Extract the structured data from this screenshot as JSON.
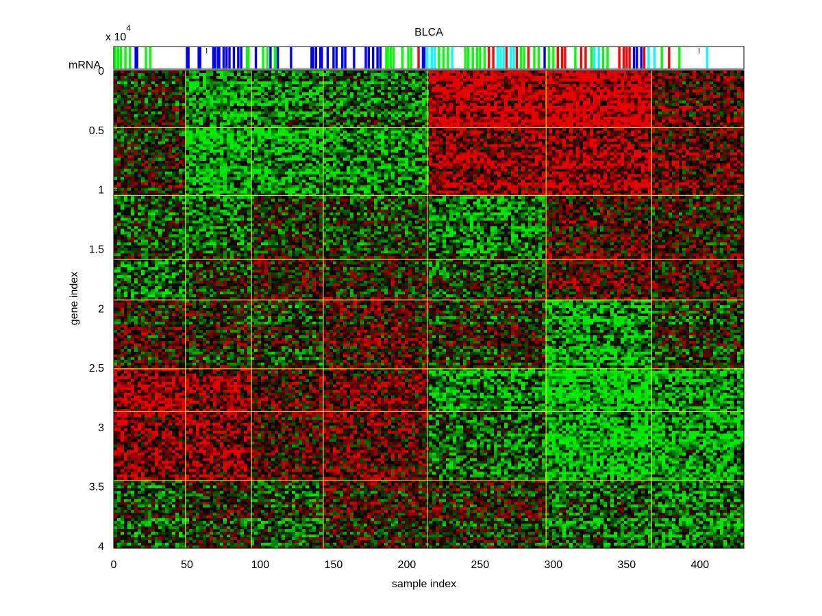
{
  "chart_data": {
    "type": "heatmap",
    "title": "BLCA",
    "xlabel": "sample index",
    "ylabel": "gene index",
    "y_exponent_label": "x 10",
    "y_exponent_power": "4",
    "annotation_row_label": "mRNA",
    "xlim": [
      0,
      430
    ],
    "ylim": [
      0,
      40200
    ],
    "y_reversed": true,
    "x_ticks": [
      0,
      50,
      100,
      150,
      200,
      250,
      300,
      350,
      400
    ],
    "x_tick_labels": [
      "0",
      "50",
      "100",
      "150",
      "200",
      "250",
      "300",
      "350",
      "400"
    ],
    "y_ticks": [
      0,
      5000,
      10000,
      15000,
      20000,
      25000,
      30000,
      35000,
      40000
    ],
    "y_tick_labels": [
      "0",
      "0.5",
      "1",
      "1.5",
      "2",
      "2.5",
      "3",
      "3.5",
      "4"
    ],
    "sample_cluster_boundaries": [
      49,
      94,
      143,
      214,
      295,
      367
    ],
    "gene_cluster_boundaries": [
      4800,
      10500,
      15900,
      19300,
      25100,
      28700,
      34500
    ],
    "heatmap_colors": {
      "low": "#00ee00",
      "mid": "#000000",
      "high": "#ee0000"
    },
    "boundary_line_color": "#ffff00",
    "block_pattern": {
      "gene_clusters": 8,
      "sample_clusters": 7,
      "mean_levels": [
        [
          -0.1,
          -0.6,
          -0.5,
          -0.4,
          0.7,
          0.8,
          0.2
        ],
        [
          0.0,
          -0.7,
          -0.6,
          -0.5,
          0.5,
          0.6,
          0.3
        ],
        [
          -0.2,
          -0.3,
          0.0,
          -0.1,
          -0.4,
          0.2,
          0.1
        ],
        [
          -0.3,
          0.0,
          0.2,
          0.1,
          -0.1,
          0.3,
          0.2
        ],
        [
          0.1,
          0.0,
          -0.1,
          0.2,
          0.0,
          -0.6,
          -0.1
        ],
        [
          0.6,
          0.5,
          0.2,
          0.3,
          -0.5,
          -0.8,
          -0.5
        ],
        [
          0.5,
          0.5,
          0.2,
          0.3,
          -0.3,
          -0.7,
          -0.6
        ],
        [
          -0.2,
          0.0,
          -0.2,
          0.1,
          0.0,
          -0.3,
          -0.4
        ]
      ]
    },
    "annotation_colors": [
      "#00ff00",
      "#0000ff",
      "#00ffff",
      "#ff0000",
      "#000000"
    ],
    "annotation_bars": [
      {
        "x": 1,
        "c": 0
      },
      {
        "x": 3,
        "c": 0
      },
      {
        "x": 5,
        "c": 0
      },
      {
        "x": 8,
        "c": 0
      },
      {
        "x": 11,
        "c": 0
      },
      {
        "x": 15,
        "c": 1
      },
      {
        "x": 16,
        "c": 1
      },
      {
        "x": 22,
        "c": 0
      },
      {
        "x": 25,
        "c": 0
      },
      {
        "x": 50,
        "c": 1
      },
      {
        "x": 51,
        "c": 1
      },
      {
        "x": 58,
        "c": 1
      },
      {
        "x": 59,
        "c": 1
      },
      {
        "x": 64,
        "c": 4
      },
      {
        "x": 68,
        "c": 1
      },
      {
        "x": 69,
        "c": 1
      },
      {
        "x": 71,
        "c": 1
      },
      {
        "x": 72,
        "c": 1
      },
      {
        "x": 75,
        "c": 1
      },
      {
        "x": 77,
        "c": 1
      },
      {
        "x": 79,
        "c": 1
      },
      {
        "x": 82,
        "c": 1
      },
      {
        "x": 85,
        "c": 1
      },
      {
        "x": 87,
        "c": 1
      },
      {
        "x": 91,
        "c": 0
      },
      {
        "x": 92,
        "c": 0
      },
      {
        "x": 97,
        "c": 1
      },
      {
        "x": 102,
        "c": 0
      },
      {
        "x": 105,
        "c": 0
      },
      {
        "x": 107,
        "c": 1
      },
      {
        "x": 110,
        "c": 0
      },
      {
        "x": 111,
        "c": 0
      },
      {
        "x": 112,
        "c": 1
      },
      {
        "x": 121,
        "c": 1
      },
      {
        "x": 135,
        "c": 1
      },
      {
        "x": 136,
        "c": 1
      },
      {
        "x": 138,
        "c": 1
      },
      {
        "x": 141,
        "c": 1
      },
      {
        "x": 142,
        "c": 1
      },
      {
        "x": 146,
        "c": 1
      },
      {
        "x": 150,
        "c": 1
      },
      {
        "x": 152,
        "c": 1
      },
      {
        "x": 156,
        "c": 1
      },
      {
        "x": 158,
        "c": 1
      },
      {
        "x": 164,
        "c": 1
      },
      {
        "x": 172,
        "c": 1
      },
      {
        "x": 174,
        "c": 1
      },
      {
        "x": 177,
        "c": 1
      },
      {
        "x": 180,
        "c": 1
      },
      {
        "x": 182,
        "c": 1
      },
      {
        "x": 186,
        "c": 0
      },
      {
        "x": 187,
        "c": 0
      },
      {
        "x": 189,
        "c": 0
      },
      {
        "x": 191,
        "c": 0
      },
      {
        "x": 197,
        "c": 0
      },
      {
        "x": 201,
        "c": 0
      },
      {
        "x": 203,
        "c": 0
      },
      {
        "x": 208,
        "c": 3
      },
      {
        "x": 211,
        "c": 1
      },
      {
        "x": 212,
        "c": 1
      },
      {
        "x": 214,
        "c": 2
      },
      {
        "x": 217,
        "c": 2
      },
      {
        "x": 219,
        "c": 2
      },
      {
        "x": 222,
        "c": 0
      },
      {
        "x": 225,
        "c": 0
      },
      {
        "x": 228,
        "c": 0
      },
      {
        "x": 231,
        "c": 2
      },
      {
        "x": 240,
        "c": 0
      },
      {
        "x": 242,
        "c": 0
      },
      {
        "x": 245,
        "c": 0
      },
      {
        "x": 248,
        "c": 0
      },
      {
        "x": 250,
        "c": 0
      },
      {
        "x": 253,
        "c": 0
      },
      {
        "x": 256,
        "c": 3
      },
      {
        "x": 259,
        "c": 3
      },
      {
        "x": 262,
        "c": 2
      },
      {
        "x": 264,
        "c": 2
      },
      {
        "x": 266,
        "c": 2
      },
      {
        "x": 268,
        "c": 3
      },
      {
        "x": 271,
        "c": 2
      },
      {
        "x": 273,
        "c": 2
      },
      {
        "x": 275,
        "c": 3
      },
      {
        "x": 278,
        "c": 0
      },
      {
        "x": 280,
        "c": 0
      },
      {
        "x": 283,
        "c": 3
      },
      {
        "x": 287,
        "c": 0
      },
      {
        "x": 290,
        "c": 0
      },
      {
        "x": 294,
        "c": 1
      },
      {
        "x": 297,
        "c": 0
      },
      {
        "x": 300,
        "c": 0
      },
      {
        "x": 303,
        "c": 3
      },
      {
        "x": 306,
        "c": 3
      },
      {
        "x": 308,
        "c": 3
      },
      {
        "x": 315,
        "c": 0
      },
      {
        "x": 319,
        "c": 3
      },
      {
        "x": 322,
        "c": 3
      },
      {
        "x": 326,
        "c": 0
      },
      {
        "x": 328,
        "c": 2
      },
      {
        "x": 331,
        "c": 2
      },
      {
        "x": 334,
        "c": 0
      },
      {
        "x": 337,
        "c": 0
      },
      {
        "x": 345,
        "c": 3
      },
      {
        "x": 348,
        "c": 3
      },
      {
        "x": 350,
        "c": 3
      },
      {
        "x": 352,
        "c": 3
      },
      {
        "x": 355,
        "c": 1
      },
      {
        "x": 357,
        "c": 1
      },
      {
        "x": 360,
        "c": 1
      },
      {
        "x": 362,
        "c": 3
      },
      {
        "x": 365,
        "c": 2
      },
      {
        "x": 369,
        "c": 2
      },
      {
        "x": 374,
        "c": 0
      },
      {
        "x": 379,
        "c": 3
      },
      {
        "x": 386,
        "c": 0
      },
      {
        "x": 400,
        "c": 4
      },
      {
        "x": 405,
        "c": 2
      }
    ]
  }
}
